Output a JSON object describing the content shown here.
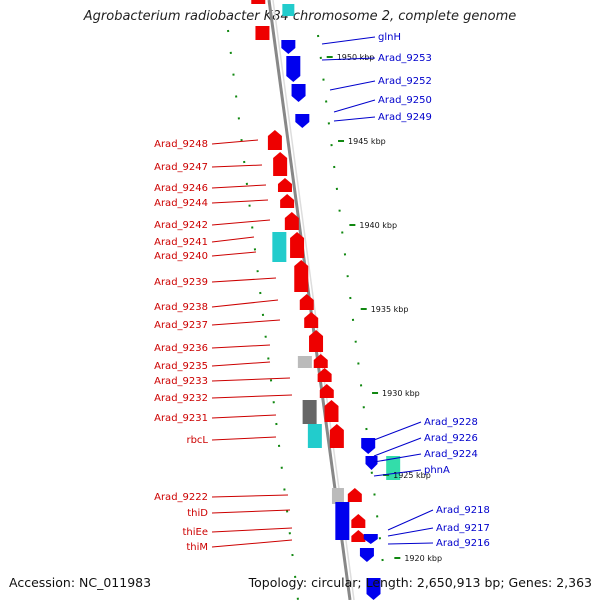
{
  "title": "Agrobacterium radiobacter K84 chromosome 2, complete genome",
  "accession": "Accession: NC_011983",
  "summary": "Topology: circular; Length: 2,650,913 bp; Genes: 2,363",
  "colors": {
    "forward": "#ee0000",
    "reverse": "#0000ee",
    "rna": "#22cccc",
    "pseudo": "#bbbbbb",
    "other": "#33ddaa",
    "backbone": "#888888",
    "ticks": "#118811"
  },
  "scale_labels": [
    "1950 kbp",
    "1945 kbp",
    "1940 kbp",
    "1935 kbp",
    "1930 kbp",
    "1925 kbp",
    "1920 kbp"
  ],
  "left_labels": [
    "Arad_9248",
    "Arad_9247",
    "Arad_9246",
    "Arad_9244",
    "Arad_9242",
    "Arad_9241",
    "Arad_9240",
    "Arad_9239",
    "Arad_9238",
    "Arad_9237",
    "Arad_9236",
    "Arad_9235",
    "Arad_9233",
    "Arad_9232",
    "Arad_9231",
    "rbcL",
    "Arad_9222",
    "thiD",
    "thiEe",
    "thiM"
  ],
  "right_labels": [
    "glnH",
    "Arad_9253",
    "Arad_9252",
    "Arad_9250",
    "Arad_9249",
    "Arad_9228",
    "Arad_9226",
    "Arad_9224",
    "phnA",
    "Arad_9218",
    "Arad_9217",
    "Arad_9216"
  ]
}
